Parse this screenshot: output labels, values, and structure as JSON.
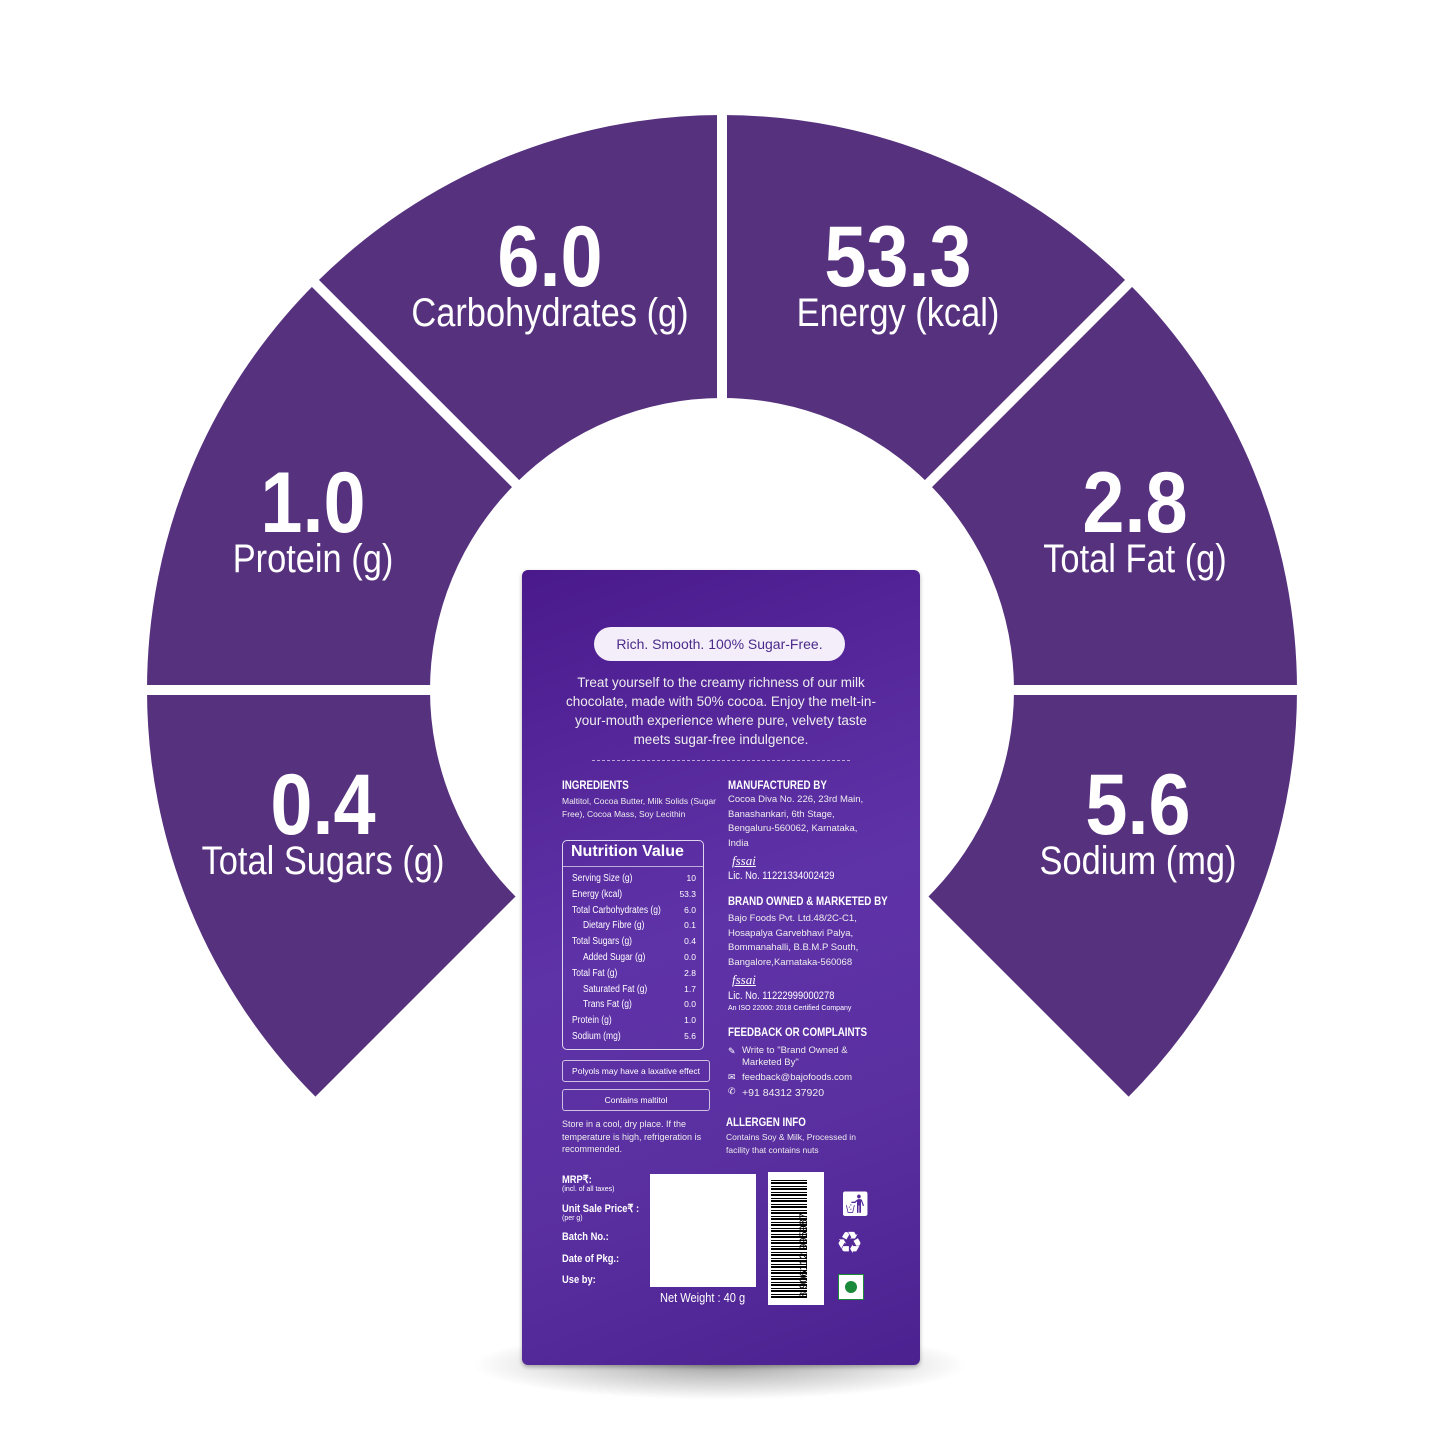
{
  "colors": {
    "segment": "#56317e",
    "pack": "#5a2fa0"
  },
  "stats": [
    {
      "id": "carbohydrates",
      "value": "6.0",
      "label": "Carbohydrates (g)"
    },
    {
      "id": "energy",
      "value": "53.3",
      "label": "Energy (kcal)"
    },
    {
      "id": "protein",
      "value": "1.0",
      "label": "Protein (g)"
    },
    {
      "id": "total-fat",
      "value": "2.8",
      "label": "Total Fat (g)"
    },
    {
      "id": "total-sugars",
      "value": "0.4",
      "label": "Total Sugars (g)"
    },
    {
      "id": "sodium",
      "value": "5.6",
      "label": "Sodium (mg)"
    }
  ],
  "pack": {
    "tagline": "Rich. Smooth. 100% Sugar-Free.",
    "intro": "Treat yourself to the creamy richness of our milk chocolate, made with 50% cocoa. Enjoy the melt-in-your-mouth experience where pure, velvety taste meets sugar-free indulgence.",
    "ingredients_title": "INGREDIENTS",
    "ingredients": "Maltitol, Cocoa Butter, Milk Solids (Sugar Free), Cocoa Mass, Soy Lecithin",
    "nutrition_title": "Nutrition Value",
    "nutrition": [
      {
        "k": "Serving Size (g)",
        "v": "10"
      },
      {
        "k": "Energy (kcal)",
        "v": "53.3"
      },
      {
        "k": "Total Carbohydrates (g)",
        "v": "6.0"
      },
      {
        "k": "Dietary Fibre (g)",
        "v": "0.1"
      },
      {
        "k": "Total Sugars (g)",
        "v": "0.4"
      },
      {
        "k": "Added Sugar (g)",
        "v": "0.0"
      },
      {
        "k": "Total Fat (g)",
        "v": "2.8"
      },
      {
        "k": "Saturated Fat (g)",
        "v": "1.7"
      },
      {
        "k": "Trans Fat (g)",
        "v": "0.0"
      },
      {
        "k": "Protein (g)",
        "v": "1.0"
      },
      {
        "k": "Sodium (mg)",
        "v": "5.6"
      }
    ],
    "polyols": "Polyols may have a laxative effect",
    "maltitol": "Contains maltitol",
    "storage": "Store in a cool, dry place. If the temperature is high, refrigeration is recommended.",
    "mfg_title": "MANUFACTURED BY",
    "mfg": "Cocoa Diva No. 226, 23rd Main, Banashankari, 6th Stage, Bengaluru-560062, Karnataka, India",
    "fssai": "fssai",
    "mfg_lic": "Lic. No. 11221334002429",
    "brand_title": "BRAND OWNED & MARKETED BY",
    "brand": "Bajo Foods Pvt. Ltd.48/2C-C1, Hosapalya Garvebhavi Palya, Bommanahalli, B.B.M.P South, Bangalore,Karnataka-560068",
    "brand_lic": "Lic. No. 11222999000278",
    "iso": "An ISO 22000: 2018 Certified Company",
    "feedback_title": "FEEDBACK OR COMPLAINTS",
    "write_to": "Write to \"Brand Owned & Marketed By\"",
    "email": "feedback@bajofoods.com",
    "phone": "+91 84312 37920",
    "allergen_title": "ALLERGEN INFO",
    "allergen": "Contains Soy & Milk, Processed in facility that contains nuts",
    "mrp": "MRP₹:",
    "mrp_note": "(incl. of all taxes)",
    "usp": "Unit Sale Price₹ :",
    "usp_note": "(per g)",
    "batch": "Batch No.:",
    "date": "Date of Pkg.:",
    "useby": "Use by:",
    "net_weight": "Net Weight : 40 g",
    "barcode": "8 906112 995987"
  }
}
